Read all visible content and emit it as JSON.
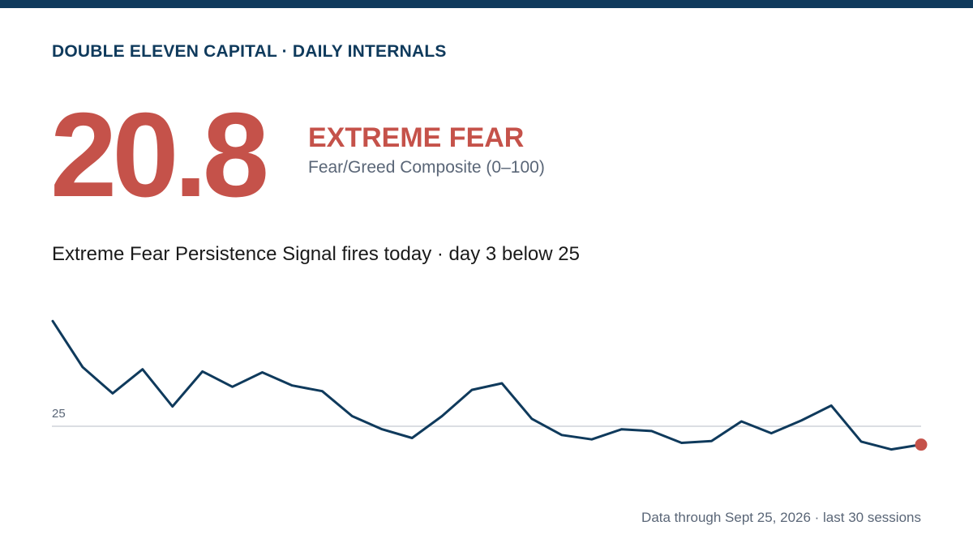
{
  "header": {
    "title": "DOUBLE ELEVEN CAPITAL · DAILY INTERNALS"
  },
  "reading": {
    "value": "20.8",
    "status": "EXTREME FEAR",
    "subtitle": "Fear/Greed Composite (0–100)"
  },
  "signal": {
    "text": "Extreme Fear Persistence Signal fires today · day 3 below 25"
  },
  "footer": {
    "text": "Data through Sept 25, 2026 · last 30 sessions"
  },
  "colors": {
    "brand": "#0f3a5c",
    "accent": "#c5524a",
    "muted": "#5a6677",
    "threshold_line": "#cfd4da"
  },
  "chart_data": {
    "type": "line",
    "series": [
      {
        "values": [
          49.0,
          38.5,
          32.5,
          38.0,
          29.5,
          37.5,
          34.0,
          37.3,
          34.3,
          33.0,
          27.3,
          24.3,
          22.3,
          27.3,
          33.3,
          34.8,
          26.7,
          23.0,
          22.0,
          24.3,
          23.9,
          21.2,
          21.6,
          26.1,
          23.4,
          26.3,
          29.7,
          21.5,
          19.7,
          20.8
        ]
      }
    ],
    "threshold": {
      "value": 25,
      "label": "25"
    },
    "ylim": [
      15,
      52
    ],
    "highlight_last": true,
    "grid": false
  }
}
